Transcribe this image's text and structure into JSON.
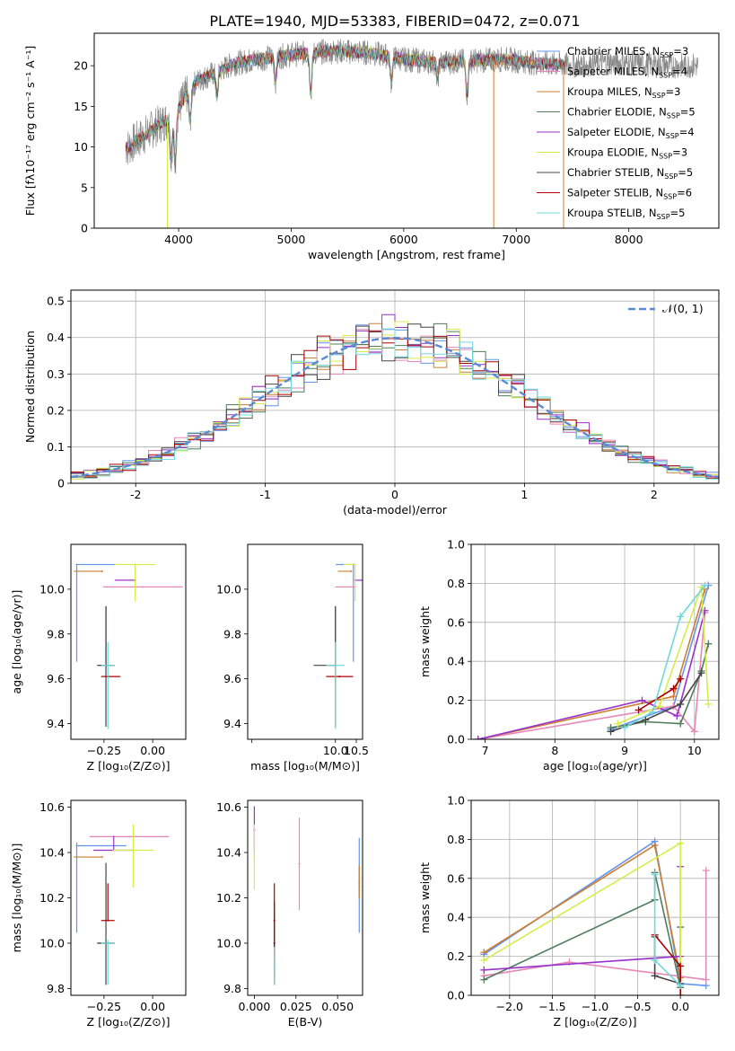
{
  "figure": {
    "title": "PLATE=1940, MJD=53383, FIBERID=0472, z=0.071"
  },
  "colors": [
    "#6495ED",
    "#E687B8",
    "#CD7F32",
    "#4F7D5C",
    "#9932CC",
    "#D4ED4A",
    "#444444",
    "#AA0000",
    "#70D8DB"
  ],
  "series_names": [
    {
      "base": "Chabrier MILES, N",
      "sub": "SSP",
      "tail": "=3"
    },
    {
      "base": "Salpeter MILES, N",
      "sub": "SSP",
      "tail": "=4"
    },
    {
      "base": "Kroupa MILES, N",
      "sub": "SSP",
      "tail": "=3"
    },
    {
      "base": "Chabrier ELODIE, N",
      "sub": "SSP",
      "tail": "=5"
    },
    {
      "base": "Salpeter ELODIE, N",
      "sub": "SSP",
      "tail": "=4"
    },
    {
      "base": "Kroupa ELODIE, N",
      "sub": "SSP",
      "tail": "=3"
    },
    {
      "base": "Chabrier STELIB, N",
      "sub": "SSP",
      "tail": "=5"
    },
    {
      "base": "Salpeter STELIB, N",
      "sub": "SSP",
      "tail": "=6"
    },
    {
      "base": "Kroupa STELIB, N",
      "sub": "SSP",
      "tail": "=5"
    }
  ],
  "chart_data": [
    {
      "id": "spectrum",
      "type": "line",
      "title": "PLATE=1940, MJD=53383, FIBERID=0472, z=0.071",
      "xlabel": "wavelength [Angstrom, rest frame]",
      "ylabel": "Flux [fλ10⁻¹⁷ erg cm⁻² s⁻¹ A⁻¹]",
      "xlim": [
        3250,
        8800
      ],
      "ylim": [
        0,
        24
      ],
      "xticks": [
        4000,
        5000,
        6000,
        7000,
        8000
      ],
      "yticks": [
        0,
        5,
        10,
        15,
        20
      ],
      "grid": false,
      "legend": "right",
      "continuum": [
        [
          3550,
          10
        ],
        [
          3700,
          11.5
        ],
        [
          3850,
          13
        ],
        [
          3950,
          13.5
        ],
        [
          4050,
          16
        ],
        [
          4150,
          18
        ],
        [
          4300,
          19
        ],
        [
          4500,
          20.3
        ],
        [
          4800,
          21
        ],
        [
          5100,
          21.5
        ],
        [
          5400,
          21.8
        ],
        [
          5700,
          21.6
        ],
        [
          6000,
          20.8
        ],
        [
          6300,
          20.4
        ],
        [
          6600,
          20.6
        ],
        [
          6900,
          20.8
        ],
        [
          7200,
          20.3
        ],
        [
          7500,
          20
        ],
        [
          7800,
          20.4
        ],
        [
          8100,
          20.2
        ],
        [
          8400,
          20
        ],
        [
          8600,
          20
        ]
      ],
      "spectrum_range": [
        3530,
        8620
      ],
      "model_range": [
        3530,
        7430
      ],
      "dips": [
        [
          3934,
          4.5
        ],
        [
          3969,
          6
        ],
        [
          4102,
          4
        ],
        [
          4340,
          3
        ],
        [
          4861,
          3
        ],
        [
          5175,
          5
        ],
        [
          5890,
          3
        ],
        [
          6563,
          4
        ],
        [
          6300,
          2
        ]
      ],
      "drop_lines": [
        3900,
        6800,
        7420
      ]
    },
    {
      "id": "residuals",
      "type": "histogram",
      "xlabel": "(data-model)/error",
      "ylabel": "Normed distribution",
      "xlim": [
        -2.5,
        2.5
      ],
      "ylim": [
        0,
        0.53
      ],
      "xticks": [
        -2,
        -1,
        0,
        1,
        2
      ],
      "yticks": [
        0.0,
        0.1,
        0.2,
        0.3,
        0.4,
        0.5
      ],
      "grid": true,
      "legend": "top-right",
      "reference_curve": {
        "label": "𝒩(0, 1)",
        "mean": 0,
        "sigma": 1
      },
      "bin_width": 0.1
    },
    {
      "id": "age-vs-Z",
      "type": "errorbar",
      "xlabel": "Z [log₁₀(Z/Z⊙)]",
      "ylabel": "age  [log₁₀(age/yr)]",
      "xlim": [
        -0.42,
        0.17
      ],
      "ylim": [
        9.33,
        10.2
      ],
      "xticks": [
        -0.25,
        0.0
      ],
      "xticklabels": [
        "−0.25",
        "0.00"
      ],
      "yticks": [
        9.4,
        9.6,
        9.8,
        10.0
      ],
      "yticklabels": [
        "9.4",
        "9.6",
        "9.8",
        "10.0"
      ],
      "points": [
        {
          "x": -0.39,
          "xe": [
            0,
            0.22
          ],
          "y": 10.11,
          "ye": [
            0.43,
            0
          ]
        },
        {
          "x": -0.05,
          "xe": [
            0.2,
            0.2
          ],
          "y": 10.01,
          "ye": [
            0,
            0
          ]
        },
        {
          "x": -0.26,
          "xe": [
            0.14,
            0
          ],
          "y": 10.08,
          "ye": [
            0,
            0
          ]
        },
        {
          "x": -0.24,
          "xe": [
            0.04,
            0.04
          ],
          "y": 9.66,
          "ye": [
            0,
            0.26
          ]
        },
        {
          "x": -0.09,
          "xe": [
            0.1,
            0
          ],
          "y": 10.04,
          "ye": [
            0,
            0
          ]
        },
        {
          "x": -0.09,
          "xe": [
            0.1,
            0.1
          ],
          "y": 10.11,
          "ye": [
            0.16,
            0
          ]
        },
        {
          "x": -0.24,
          "xe": [
            0.04,
            0.04
          ],
          "y": 9.66,
          "ye": [
            0.27,
            0.26
          ]
        },
        {
          "x": -0.23,
          "xe": [
            0.03,
            0.06
          ],
          "y": 9.61,
          "ye": [
            0,
            0
          ]
        },
        {
          "x": -0.23,
          "xe": [
            0.03,
            0.03
          ],
          "y": 9.66,
          "ye": [
            0.28,
            0.1
          ]
        }
      ]
    },
    {
      "id": "age-vs-mass",
      "type": "errorbar",
      "xlabel": "mass [log₁₀(M/M⊙)]",
      "ylabel": "",
      "xlim": [
        7.9,
        10.65
      ],
      "ylim": [
        9.33,
        10.2
      ],
      "xticks": [
        8.0,
        10.0,
        10.5
      ],
      "xticklabels": [
        "",
        "10.0",
        "10.5"
      ],
      "yticks": [
        9.4,
        9.6,
        9.8,
        10.0
      ],
      "yticklabels": [
        "9.4",
        "9.6",
        "9.8",
        "10.0"
      ],
      "points": [
        {
          "x": 10.43,
          "xe": [
            0.4,
            0
          ],
          "y": 10.11,
          "ye": [
            0.43,
            0
          ]
        },
        {
          "x": 10.47,
          "xe": [
            0.45,
            0
          ],
          "y": 10.01,
          "ye": [
            0,
            0
          ]
        },
        {
          "x": 10.38,
          "xe": [
            0.3,
            0
          ],
          "y": 10.08,
          "ye": [
            0,
            0
          ]
        },
        {
          "x": 10.0,
          "xe": [
            0,
            0
          ],
          "y": 9.66,
          "ye": [
            0,
            0.26
          ]
        },
        {
          "x": 10.47,
          "xe": [
            0,
            0.15
          ],
          "y": 10.04,
          "ye": [
            0,
            0
          ]
        },
        {
          "x": 10.47,
          "xe": [
            0.25,
            0
          ],
          "y": 10.11,
          "ye": [
            0.16,
            0
          ]
        },
        {
          "x": 10.0,
          "xe": [
            0.5,
            0
          ],
          "y": 9.66,
          "ye": [
            0.27,
            0.26
          ]
        },
        {
          "x": 10.1,
          "xe": [
            0.3,
            0.3
          ],
          "y": 9.61,
          "ye": [
            0,
            0
          ]
        },
        {
          "x": 10.0,
          "xe": [
            0.2,
            0.2
          ],
          "y": 9.66,
          "ye": [
            0.28,
            0.1
          ]
        }
      ]
    },
    {
      "id": "massweight-vs-age",
      "type": "line",
      "xlabel": "age  [log₁₀(age/yr)]",
      "ylabel": "mass weight",
      "xlim": [
        6.8,
        10.35
      ],
      "ylim": [
        0,
        1.0
      ],
      "xticks": [
        7,
        8,
        9,
        10
      ],
      "xticklabels": [
        "7",
        "8",
        "9",
        "10"
      ],
      "yticks": [
        0.0,
        0.2,
        0.4,
        0.6,
        0.8,
        1.0
      ],
      "yticklabels": [
        "0.0",
        "0.2",
        "0.4",
        "0.6",
        "0.8",
        "1.0"
      ],
      "grid": true,
      "series": [
        {
          "x": [
            8.8,
            9.7,
            10.2
          ],
          "y": [
            0.05,
            0.17,
            0.79
          ]
        },
        {
          "x": [
            6.9,
            9.7,
            10.0,
            10.15
          ],
          "y": [
            0.0,
            0.17,
            0.04,
            0.65
          ]
        },
        {
          "x": [
            6.9,
            9.7,
            10.15
          ],
          "y": [
            0.0,
            0.22,
            0.77
          ]
        },
        {
          "x": [
            8.8,
            9.3,
            9.8,
            10.1,
            10.2
          ],
          "y": [
            0.06,
            0.09,
            0.08,
            0.35,
            0.49
          ]
        },
        {
          "x": [
            6.9,
            9.25,
            9.75,
            10.15
          ],
          "y": [
            0.0,
            0.2,
            0.12,
            0.66
          ]
        },
        {
          "x": [
            8.9,
            9.5,
            10.1,
            10.2
          ],
          "y": [
            0.08,
            0.17,
            0.78,
            0.18
          ]
        },
        {
          "x": [
            8.8,
            9.3,
            9.8,
            10.1
          ],
          "y": [
            0.04,
            0.1,
            0.18,
            0.34
          ]
        },
        {
          "x": [
            9.2,
            9.7,
            9.8
          ],
          "y": [
            0.15,
            0.26,
            0.31
          ]
        },
        {
          "x": [
            9.0,
            9.4,
            9.8,
            10.15
          ],
          "y": [
            0.06,
            0.14,
            0.63,
            0.79
          ]
        }
      ]
    },
    {
      "id": "mass-vs-Z",
      "type": "errorbar",
      "xlabel": "Z [log₁₀(Z/Z⊙)]",
      "ylabel": "mass [log₁₀(M/M⊙)]",
      "xlim": [
        -0.42,
        0.17
      ],
      "ylim": [
        9.77,
        10.63
      ],
      "xticks": [
        -0.25,
        0.0
      ],
      "xticklabels": [
        "−0.25",
        "0.00"
      ],
      "yticks": [
        9.8,
        10.0,
        10.2,
        10.4,
        10.6
      ],
      "yticklabels": [
        "9.8",
        "10.0",
        "10.2",
        "10.4",
        "10.6"
      ],
      "points": [
        {
          "x": -0.39,
          "xe": [
            0,
            0.25
          ],
          "y": 10.43,
          "ye": [
            0.38,
            0.01
          ]
        },
        {
          "x": -0.12,
          "xe": [
            0.2,
            0.2
          ],
          "y": 10.47,
          "ye": [
            0,
            0
          ]
        },
        {
          "x": -0.26,
          "xe": [
            0.14,
            0
          ],
          "y": 10.38,
          "ye": [
            0,
            0
          ]
        },
        {
          "x": -0.24,
          "xe": [
            0.04,
            0.04
          ],
          "y": 10.0,
          "ye": [
            0,
            0
          ]
        },
        {
          "x": -0.2,
          "xe": [
            0.1,
            0.1
          ],
          "y": 10.41,
          "ye": [
            0,
            0.06
          ]
        },
        {
          "x": -0.1,
          "xe": [
            0.1,
            0.1
          ],
          "y": 10.41,
          "ye": [
            0.16,
            0.11
          ]
        },
        {
          "x": -0.24,
          "xe": [
            0.04,
            0.04
          ],
          "y": 10.0,
          "ye": [
            0.18,
            0.35
          ]
        },
        {
          "x": -0.23,
          "xe": [
            0.03,
            0.03
          ],
          "y": 10.1,
          "ye": [
            0,
            0.16
          ]
        },
        {
          "x": -0.23,
          "xe": [
            0.03,
            0.03
          ],
          "y": 10.0,
          "ye": [
            0.18,
            0.01
          ]
        }
      ]
    },
    {
      "id": "mass-vs-EBV",
      "type": "errorbar",
      "xlabel": "E(B-V)",
      "ylabel": "",
      "xlim": [
        -0.004,
        0.065
      ],
      "ylim": [
        9.77,
        10.63
      ],
      "xticks": [
        0.0,
        0.025,
        0.05
      ],
      "xticklabels": [
        "0.000",
        "0.025",
        "0.050"
      ],
      "yticks": [
        9.8,
        10.0,
        10.2,
        10.4,
        10.6
      ],
      "yticklabels": [
        "9.8",
        "10.0",
        "10.2",
        "10.4",
        "10.6"
      ],
      "points": [
        {
          "x": 0.063,
          "xe": [
            0,
            0
          ],
          "y": 10.25,
          "ye": [
            0.2,
            0.21
          ]
        },
        {
          "x": 0.027,
          "xe": [
            0,
            0
          ],
          "y": 10.35,
          "ye": [
            0.2,
            0.2
          ]
        },
        {
          "x": 0.063,
          "xe": [
            0,
            0
          ],
          "y": 10.27,
          "ye": [
            0.07,
            0.07
          ]
        },
        {
          "x": 0.012,
          "xe": [
            0,
            0
          ],
          "y": 10.0,
          "ye": [
            0.15,
            0.15
          ]
        },
        {
          "x": 0.0,
          "xe": [
            0,
            0
          ],
          "y": 10.5,
          "ye": [
            0.1,
            0.1
          ]
        },
        {
          "x": 0.0,
          "xe": [
            0,
            0
          ],
          "y": 10.38,
          "ye": [
            0.14,
            0.14
          ]
        },
        {
          "x": 0.012,
          "xe": [
            0,
            0
          ],
          "y": 10.0,
          "ye": [
            0.18,
            0.18
          ]
        },
        {
          "x": 0.012,
          "xe": [
            0,
            0
          ],
          "y": 10.1,
          "ye": [
            0.16,
            0.16
          ]
        },
        {
          "x": 0.012,
          "xe": [
            0,
            0
          ],
          "y": 9.9,
          "ye": [
            0.08,
            0.08
          ]
        }
      ]
    },
    {
      "id": "massweight-vs-Z",
      "type": "line",
      "xlabel": "Z [log₁₀(Z/Z⊙)]",
      "ylabel": "mass weight",
      "xlim": [
        -2.45,
        0.45
      ],
      "ylim": [
        0,
        1.0
      ],
      "xticks": [
        -2.0,
        -1.5,
        -1.0,
        -0.5,
        0.0
      ],
      "xticklabels": [
        "−2.0",
        "−1.5",
        "−1.0",
        "−0.5",
        "0.0"
      ],
      "yticks": [
        0.0,
        0.2,
        0.4,
        0.6,
        0.8,
        1.0
      ],
      "yticklabels": [
        "0.0",
        "0.2",
        "0.4",
        "0.6",
        "0.8",
        "1.0"
      ],
      "grid": true,
      "series": [
        {
          "x": [
            -2.3,
            -0.3,
            0.0,
            0.3
          ],
          "y": [
            0.21,
            0.79,
            0.06,
            0.05
          ]
        },
        {
          "x": [
            -2.3,
            -1.3,
            0.3,
            0.3
          ],
          "y": [
            0.1,
            0.17,
            0.08,
            0.64
          ]
        },
        {
          "x": [
            -2.3,
            -0.3,
            0.0
          ],
          "y": [
            0.22,
            0.77,
            0.09
          ]
        },
        {
          "x": [
            -2.3,
            -0.3,
            -0.3,
            0.0,
            0.0
          ],
          "y": [
            0.08,
            0.49,
            0.63,
            0.04,
            0.35
          ]
        },
        {
          "x": [
            -2.3,
            0.0,
            0.0
          ],
          "y": [
            0.13,
            0.2,
            0.66
          ]
        },
        {
          "x": [
            -2.3,
            0.0,
            0.0
          ],
          "y": [
            0.18,
            0.78,
            0.0
          ]
        },
        {
          "x": [
            -0.3,
            -0.3,
            0.0
          ],
          "y": [
            0.3,
            0.1,
            0.06
          ]
        },
        {
          "x": [
            -0.3,
            0.0,
            0.0
          ],
          "y": [
            0.31,
            0.15,
            0.0
          ]
        },
        {
          "x": [
            -0.3,
            -0.3,
            0.0
          ],
          "y": [
            0.62,
            0.18,
            0.05
          ]
        }
      ]
    }
  ]
}
